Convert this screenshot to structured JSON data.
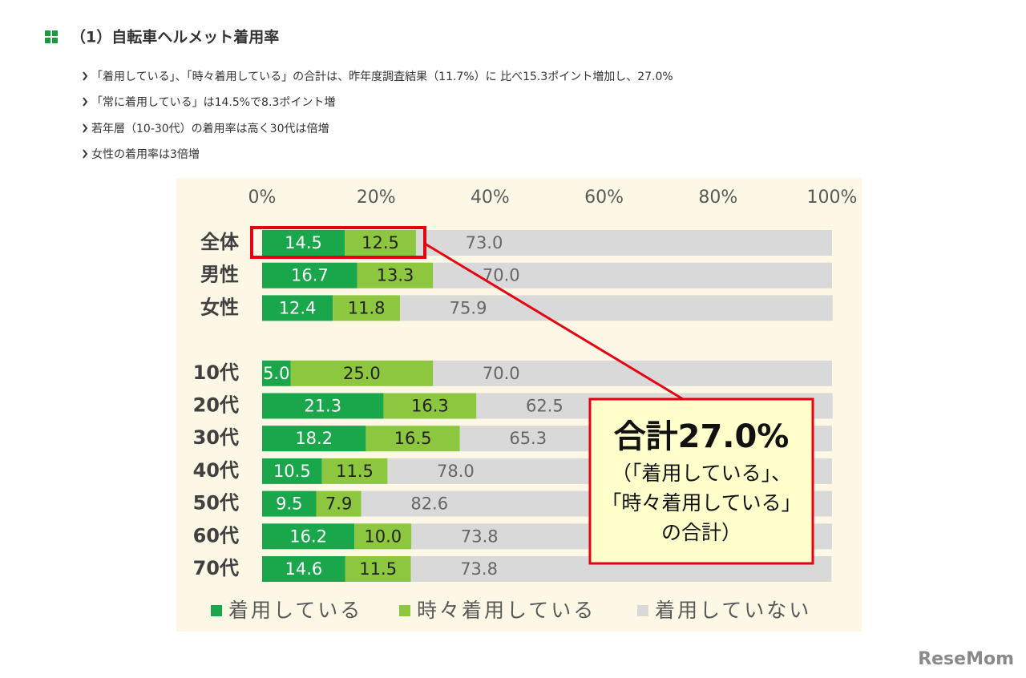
{
  "header": {
    "title": "（1）自転車ヘルメット着用率"
  },
  "bullets": [
    "「着用している」、「時々着用している」の合計は、昨年度調査結果（11.7%）に 比べ15.3ポイント増加し、27.0%",
    "「常に着用している」は14.5%で8.3ポイント増",
    "若年層（10-30代）の着用率は高く30代は倍増",
    "女性の着用率は3倍増"
  ],
  "watermark": "ReseMom",
  "chart_data": {
    "type": "stacked-hbar",
    "categories": [
      "全体",
      "男性",
      "女性",
      null,
      "10代",
      "20代",
      "30代",
      "40代",
      "50代",
      "60代",
      "70代"
    ],
    "series": [
      {
        "name": "着用している",
        "color": "#1aa64b",
        "values": [
          14.5,
          16.7,
          12.4,
          null,
          5.0,
          21.3,
          18.2,
          10.5,
          9.5,
          16.2,
          14.6
        ],
        "value_labels": [
          "14.5",
          "16.7",
          "12.4",
          null,
          "5.0",
          "21.3",
          "18.2",
          "10.5",
          "9.5",
          "16.2",
          "14.6"
        ]
      },
      {
        "name": "時々着用している",
        "color": "#8dc63f",
        "values": [
          12.5,
          13.3,
          11.8,
          null,
          25.0,
          16.3,
          16.5,
          11.5,
          7.9,
          10.0,
          11.5
        ],
        "value_labels": [
          "12.5",
          "13.3",
          "11.8",
          null,
          "25.0",
          "16.3",
          "16.5",
          "11.5",
          "7.9",
          "10.0",
          "11.5"
        ]
      },
      {
        "name": "着用していない",
        "color": "#d9d9d9",
        "values": [
          73.0,
          70.0,
          75.9,
          null,
          70.0,
          62.5,
          65.3,
          78.0,
          82.6,
          73.8,
          73.8
        ],
        "value_labels": [
          "73.0",
          "70.0",
          "75.9",
          null,
          "70.0",
          "62.5",
          "65.3",
          "78.0",
          "82.6",
          "73.8",
          "73.8"
        ]
      }
    ],
    "xlim": [
      0,
      100
    ],
    "xticks": [
      {
        "value": 0,
        "label": "0%"
      },
      {
        "value": 20,
        "label": "20%"
      },
      {
        "value": 40,
        "label": "40%"
      },
      {
        "value": 60,
        "label": "60%"
      },
      {
        "value": 80,
        "label": "80%"
      },
      {
        "value": 100,
        "label": "100%"
      }
    ],
    "annotation": {
      "headline": "合計27.0%",
      "lines": [
        "（「着用している」、",
        "「時々着用している」",
        "の合計）"
      ]
    }
  }
}
